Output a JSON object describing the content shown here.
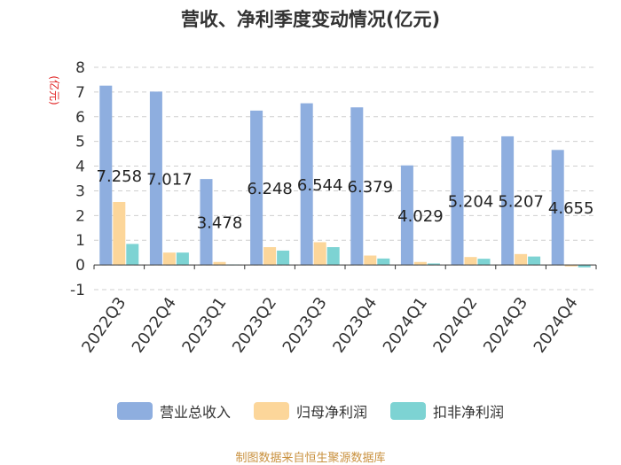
{
  "chart_data": {
    "type": "bar",
    "title": "营收、净利季度变动情况(亿元)",
    "ylabel": "(亿元)",
    "ylim": [
      -1,
      8
    ],
    "yticks": [
      -1,
      0,
      1,
      2,
      3,
      4,
      5,
      6,
      7,
      8
    ],
    "categories": [
      "2022Q3",
      "2022Q4",
      "2023Q1",
      "2023Q2",
      "2023Q3",
      "2023Q4",
      "2024Q1",
      "2024Q2",
      "2024Q3",
      "2024Q4"
    ],
    "series": [
      {
        "name": "营业总收入",
        "color": "#8eaedf",
        "values": [
          7.258,
          7.017,
          3.478,
          6.248,
          6.544,
          6.379,
          4.029,
          5.204,
          5.207,
          4.655
        ],
        "labels": [
          "7.258",
          "7.017",
          "3.478",
          "6.248",
          "6.544",
          "6.379",
          "4.029",
          "5.204",
          "5.207",
          "4.655"
        ]
      },
      {
        "name": "归母净利润",
        "color": "#fcd69a",
        "values": [
          2.55,
          0.5,
          0.12,
          0.72,
          0.92,
          0.38,
          0.12,
          0.32,
          0.44,
          -0.06
        ]
      },
      {
        "name": "扣非净利润",
        "color": "#7dd3d3",
        "values": [
          0.85,
          0.5,
          0.02,
          0.58,
          0.72,
          0.26,
          0.06,
          0.25,
          0.34,
          -0.1
        ]
      }
    ],
    "legend_position": "bottom",
    "grid": true,
    "source": "制图数据来自恒生聚源数据库"
  }
}
